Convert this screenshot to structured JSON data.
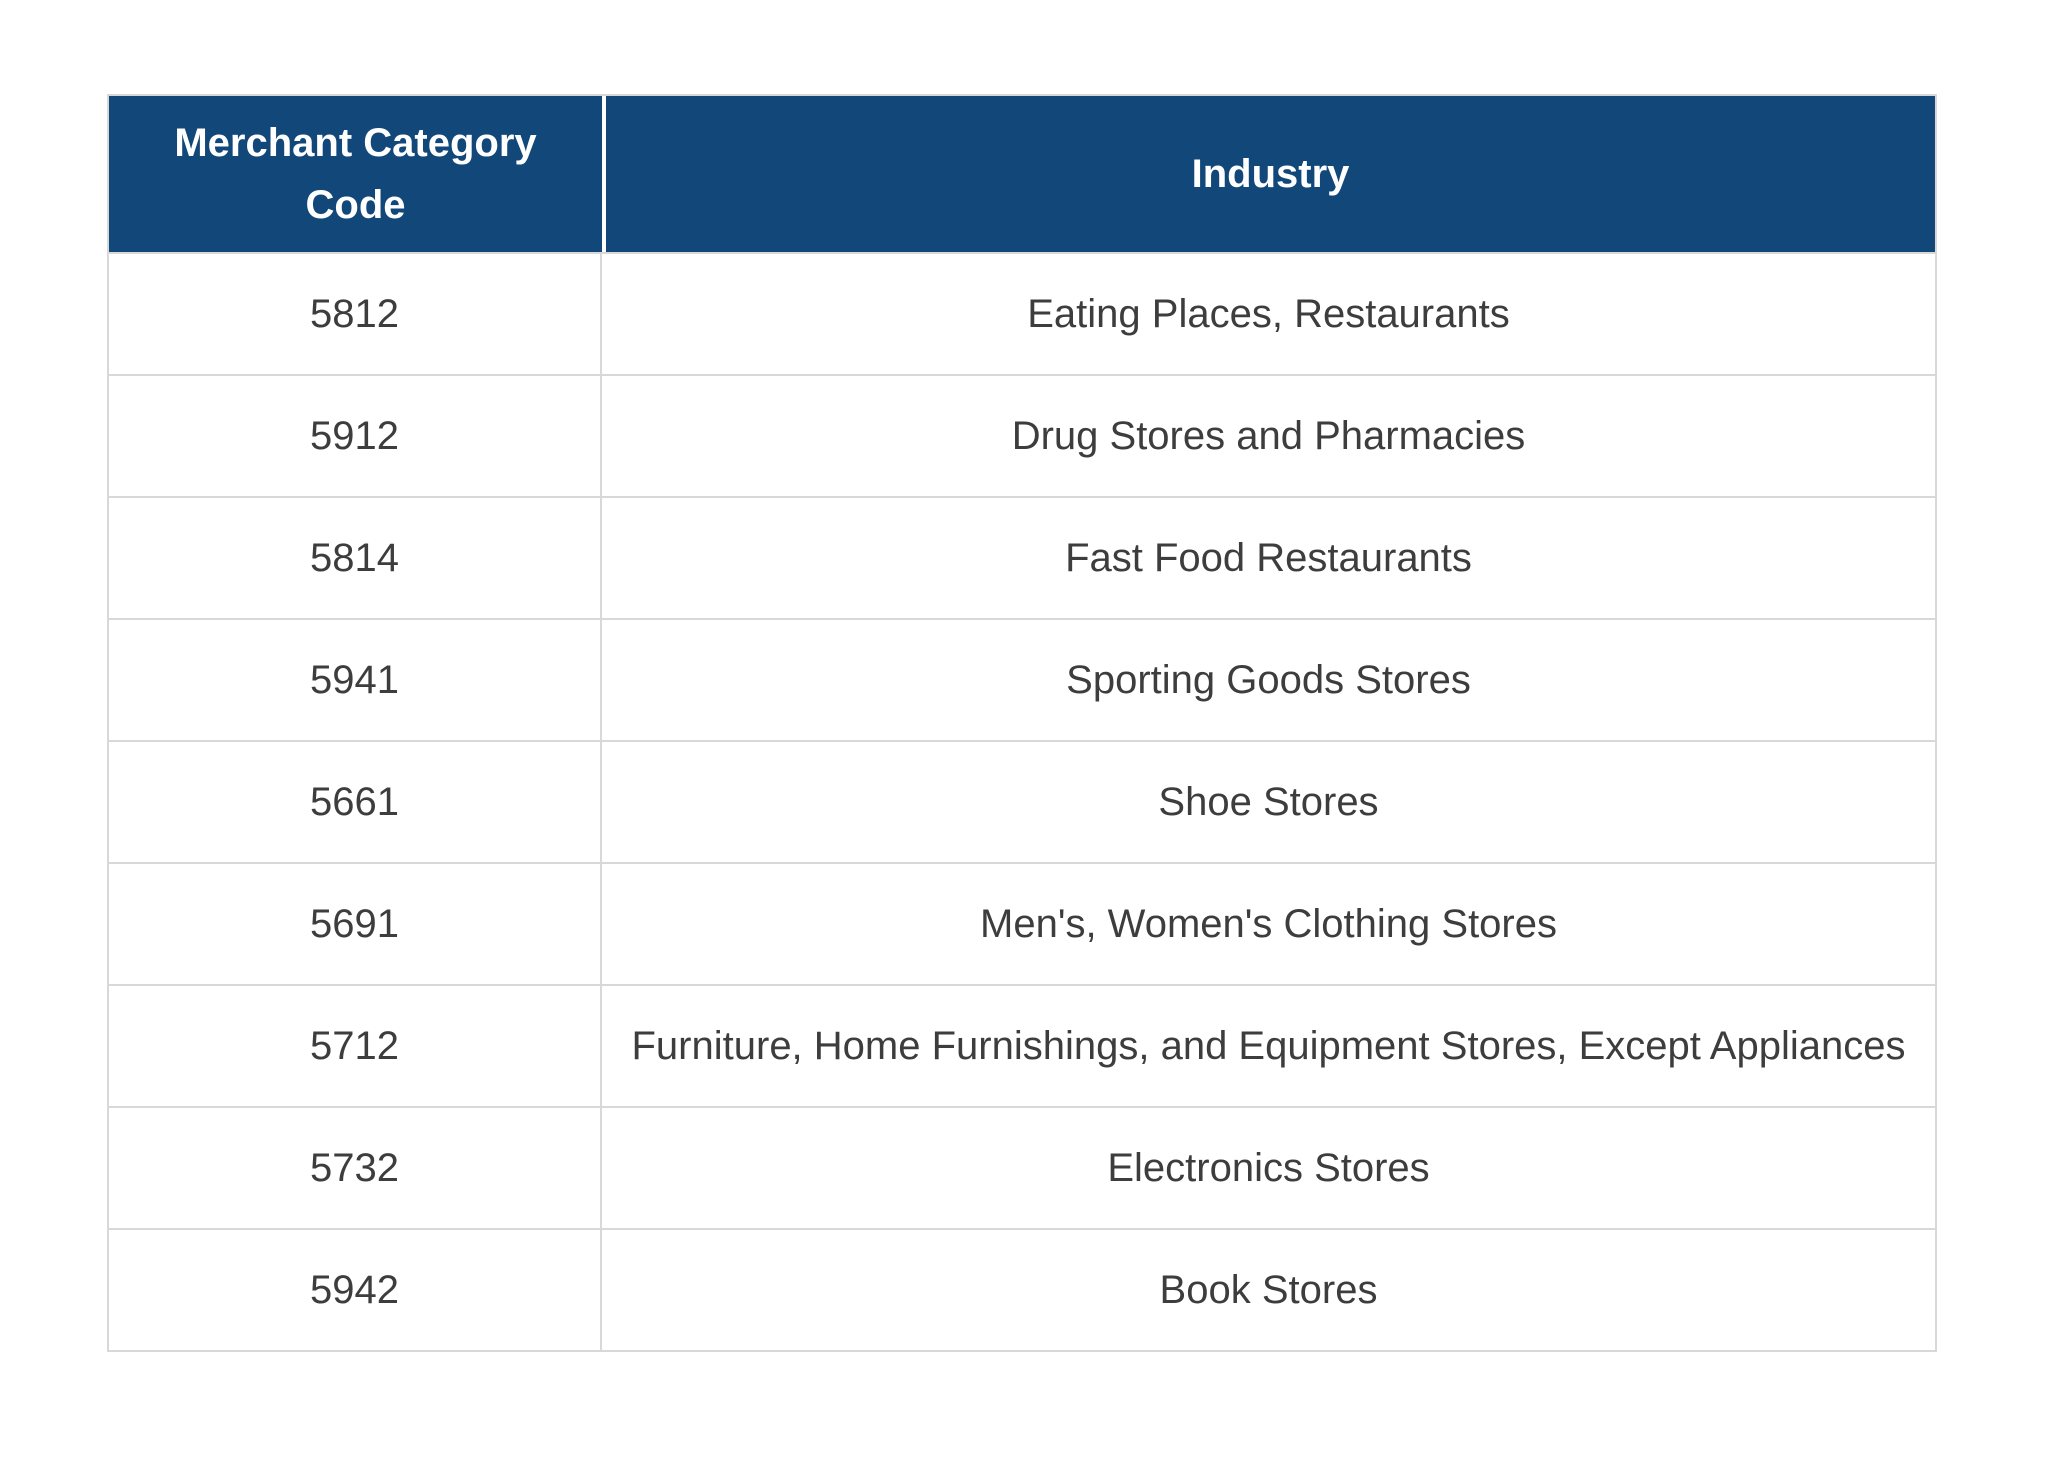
{
  "table": {
    "columns": [
      {
        "label": "Merchant Category Code"
      },
      {
        "label": "Industry"
      }
    ],
    "rows": [
      {
        "code": "5812",
        "industry": "Eating Places, Restaurants"
      },
      {
        "code": "5912",
        "industry": "Drug Stores and Pharmacies"
      },
      {
        "code": "5814",
        "industry": "Fast Food Restaurants"
      },
      {
        "code": "5941",
        "industry": "Sporting Goods Stores"
      },
      {
        "code": "5661",
        "industry": "Shoe Stores"
      },
      {
        "code": "5691",
        "industry": "Men's, Women's Clothing Stores"
      },
      {
        "code": "5712",
        "industry": "Furniture, Home Furnishings, and Equipment Stores, Except Appliances"
      },
      {
        "code": "5732",
        "industry": "Electronics Stores"
      },
      {
        "code": "5942",
        "industry": "Book Stores"
      }
    ],
    "colors": {
      "header_bg": "#12477A",
      "header_text": "#FFFFFF",
      "body_text": "#3D3D3D",
      "border": "#D8D8D8",
      "page_bg": "#FFFFFF"
    }
  }
}
